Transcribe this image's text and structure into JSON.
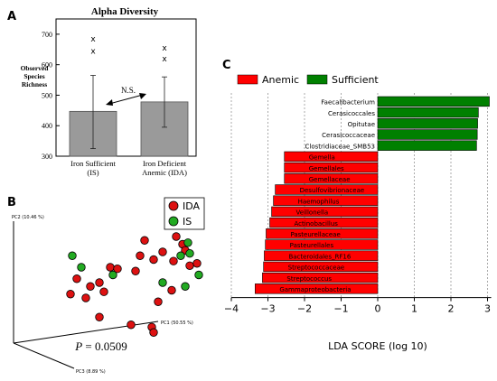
{
  "panels": {
    "a": "A",
    "b": "B",
    "c": "C"
  },
  "panel_a": {
    "title": "Alpha Diversity",
    "ylabel_lines": [
      "Observed",
      "Species",
      "Richness"
    ],
    "significance": "N.S."
  },
  "panel_b": {
    "axis_labels": {
      "pc1": "PC1 (50.55 %)",
      "pc2": "PC2 (10.46 %)",
      "pc3": "PC3 (8.89 %)"
    },
    "legend": [
      "IDA",
      "IS"
    ],
    "p_symbol": "P",
    "p_value": " = 0.0509"
  },
  "colors": {
    "bar_gray": "#9a9a9a",
    "anemic": "#ff0000",
    "sufficient": "#008000",
    "ida_point": "#dd1111",
    "is_point": "#22aa22"
  },
  "chart_data": [
    {
      "type": "bar",
      "title": "Alpha Diversity",
      "ylabel": "Observed Species Richness",
      "categories": [
        [
          "Iron Sufficient",
          "(IS)"
        ],
        [
          "Iron Deficient",
          "Anemic (IDA)"
        ]
      ],
      "values": [
        447,
        478
      ],
      "error_low": [
        325,
        395
      ],
      "error_high": [
        565,
        560
      ],
      "outliers": [
        [
          645,
          685
        ],
        [
          620,
          655
        ]
      ],
      "ylim": [
        300,
        750
      ],
      "yticks": [
        300,
        400,
        500,
        600,
        700
      ]
    },
    {
      "type": "scatter",
      "series": [
        {
          "name": "IDA",
          "points": [
            [
              55,
              80
            ],
            [
              20,
              75
            ],
            [
              62,
              70
            ],
            [
              65,
              62
            ],
            [
              40,
              60
            ],
            [
              15,
              55
            ],
            [
              30,
              50
            ],
            [
              52,
              48
            ],
            [
              70,
              42
            ],
            [
              78,
              45
            ],
            [
              10,
              35
            ],
            [
              -18,
              40
            ],
            [
              -10,
              38
            ],
            [
              -30,
              20
            ],
            [
              -55,
              25
            ],
            [
              -40,
              15
            ],
            [
              -62,
              5
            ],
            [
              -45,
              0
            ],
            [
              -25,
              8
            ],
            [
              50,
              10
            ],
            [
              35,
              -5
            ],
            [
              -30,
              -25
            ],
            [
              5,
              -35
            ],
            [
              28,
              -38
            ],
            [
              30,
              -45
            ]
          ]
        },
        {
          "name": "IS",
          "points": [
            [
              68,
              72
            ],
            [
              70,
              58
            ],
            [
              60,
              55
            ],
            [
              80,
              30
            ],
            [
              40,
              20
            ],
            [
              -60,
              55
            ],
            [
              -15,
              30
            ],
            [
              -50,
              40
            ],
            [
              65,
              15
            ]
          ]
        }
      ]
    },
    {
      "type": "bar",
      "orientation": "horizontal",
      "xlabel": "LDA SCORE (log 10)",
      "xlim": [
        -4,
        3.1
      ],
      "xticks": [
        -4,
        -3,
        -2,
        -1,
        0,
        1,
        2,
        3
      ],
      "legend": [
        "Anemic",
        "Sufficient"
      ],
      "categories": [
        "Faecalibacterium",
        "Cerasicoccales",
        "Opitutae",
        "Cerasicoccaceae",
        "Clostridiaceae_SMB53",
        "Gemella",
        "Gemellales",
        "Gemellaceae",
        "Desulfovibrionaceae",
        "Haemophilus",
        "Veillonella",
        "Actinobacillus",
        "Pasteurellaceae",
        "Pasteurellales",
        "Bacteroidales_RF16",
        "Streptococcaceae",
        "Streptococcus",
        "Gammaproteobacteria"
      ],
      "values": [
        3.05,
        2.75,
        2.73,
        2.72,
        2.7,
        -2.55,
        -2.55,
        -2.55,
        -2.8,
        -2.85,
        -2.9,
        -2.95,
        -3.05,
        -3.07,
        -3.1,
        -3.12,
        -3.15,
        -3.35
      ],
      "groups": [
        "Sufficient",
        "Sufficient",
        "Sufficient",
        "Sufficient",
        "Sufficient",
        "Anemic",
        "Anemic",
        "Anemic",
        "Anemic",
        "Anemic",
        "Anemic",
        "Anemic",
        "Anemic",
        "Anemic",
        "Anemic",
        "Anemic",
        "Anemic",
        "Anemic"
      ]
    }
  ]
}
